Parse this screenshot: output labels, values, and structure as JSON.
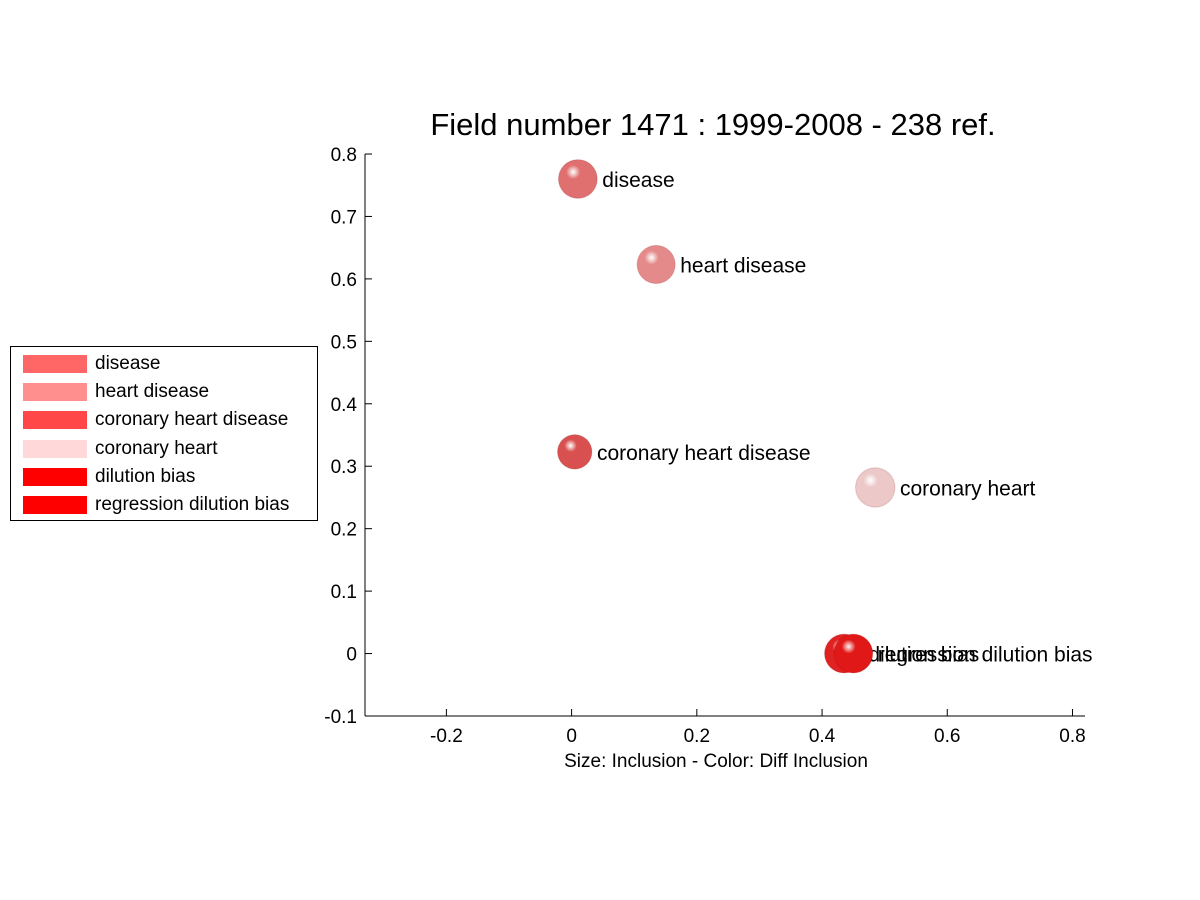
{
  "chart_data": {
    "type": "scatter",
    "title": "Field number 1471 : 1999-2008  - 238 ref.",
    "xlabel": "Size: Inclusion - Color: Diff Inclusion",
    "ylabel": "",
    "xlim": [
      -0.33,
      0.82
    ],
    "ylim": [
      -0.1,
      0.8
    ],
    "xticks": [
      -0.2,
      0,
      0.2,
      0.4,
      0.6,
      0.8
    ],
    "xtick_labels": [
      "-0.2",
      "0",
      "0.2",
      "0.4",
      "0.6",
      "0.8"
    ],
    "yticks": [
      -0.1,
      0,
      0.1,
      0.2,
      0.3,
      0.4,
      0.5,
      0.6,
      0.7,
      0.8
    ],
    "ytick_labels": [
      "-0.1",
      "0",
      "0.1",
      "0.2",
      "0.3",
      "0.4",
      "0.5",
      "0.6",
      "0.7",
      "0.8"
    ],
    "grid": false,
    "legend_position": "left",
    "points": [
      {
        "label": "disease",
        "x": 0.01,
        "y": 0.76,
        "size": 0.062,
        "color": "#e07070"
      },
      {
        "label": "heart disease",
        "x": 0.135,
        "y": 0.623,
        "size": 0.061,
        "color": "#e58a8a"
      },
      {
        "label": "coronary heart disease",
        "x": 0.005,
        "y": 0.323,
        "size": 0.055,
        "color": "#d85050"
      },
      {
        "label": "coronary heart",
        "x": 0.485,
        "y": 0.266,
        "size": 0.063,
        "color": "#ecc8c8"
      },
      {
        "label": "dilution bias",
        "x": 0.435,
        "y": 0.0,
        "size": 0.062,
        "color": "#e02222"
      },
      {
        "label": "regression dilution bias",
        "x": 0.45,
        "y": 0.0,
        "size": 0.062,
        "color": "#e01818"
      }
    ]
  },
  "legend": {
    "items": [
      {
        "label": "disease",
        "color": "#ff6666"
      },
      {
        "label": "heart disease",
        "color": "#ff8f8f"
      },
      {
        "label": "coronary heart disease",
        "color": "#ff4747"
      },
      {
        "label": "coronary heart",
        "color": "#ffd9d9"
      },
      {
        "label": "dilution bias",
        "color": "#ff0000"
      },
      {
        "label": "regression dilution bias",
        "color": "#ff0000"
      }
    ]
  }
}
